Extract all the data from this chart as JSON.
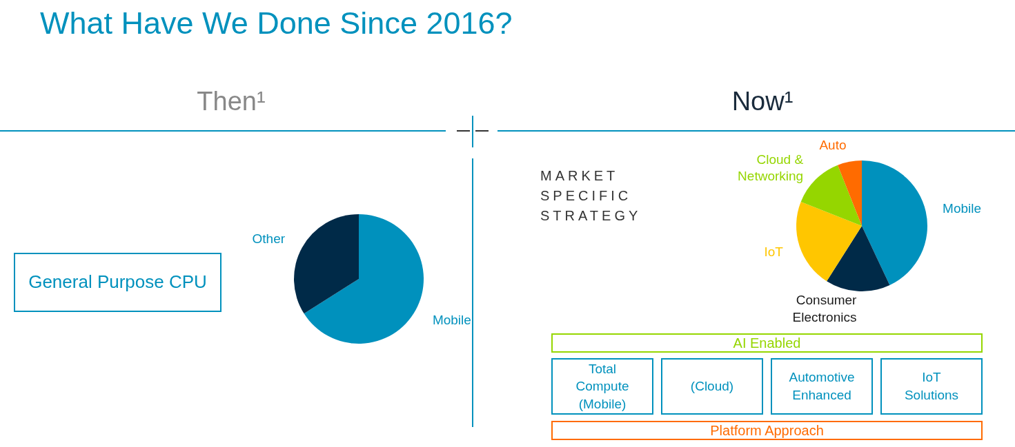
{
  "chart_data": [
    {
      "type": "pie",
      "title": "What Have We Done Since 2016?",
      "subtitle": "Then¹",
      "categories": [
        "Mobile",
        "Other"
      ],
      "values": [
        66,
        34
      ],
      "colors": [
        "#0091bd",
        "#002a48"
      ],
      "annotations": [
        "General Purpose CPU"
      ]
    },
    {
      "type": "pie",
      "title": "Now¹",
      "categories": [
        "Mobile",
        "Consumer Electronics",
        "IoT",
        "Cloud & Networking",
        "Auto"
      ],
      "values": [
        43,
        16,
        22,
        13,
        6
      ],
      "colors": [
        "#0091bd",
        "#002a48",
        "#ffc600",
        "#95d600",
        "#ff6b00"
      ],
      "annotations": [
        "MARKET SPECIFIC STRATEGY",
        "AI Enabled",
        "Total Compute (Mobile)",
        "(Cloud)",
        "Automotive Enhanced",
        "IoT Solutions",
        "Platform Approach"
      ]
    }
  ]
}
